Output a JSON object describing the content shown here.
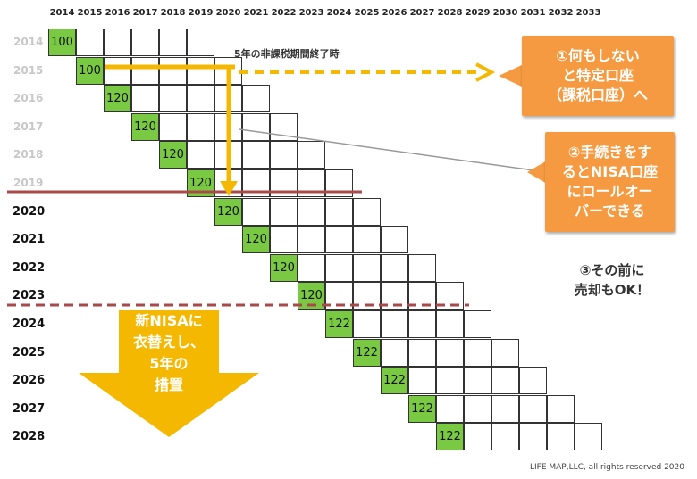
{
  "columns": [
    "2014",
    "2015",
    "2016",
    "2017",
    "2018",
    "2019",
    "2020",
    "2021",
    "2022",
    "2023",
    "2024",
    "2025",
    "2026",
    "2027",
    "2028",
    "2029",
    "2030",
    "2031",
    "2032",
    "2033"
  ],
  "rows": [
    {
      "year": "2014",
      "value": "100",
      "past": true
    },
    {
      "year": "2015",
      "value": "100",
      "past": true
    },
    {
      "year": "2016",
      "value": "120",
      "past": true
    },
    {
      "year": "2017",
      "value": "120",
      "past": true
    },
    {
      "year": "2018",
      "value": "120",
      "past": true
    },
    {
      "year": "2019",
      "value": "120",
      "past": true
    },
    {
      "year": "2020",
      "value": "120",
      "past": false
    },
    {
      "year": "2021",
      "value": "120",
      "past": false
    },
    {
      "year": "2022",
      "value": "120",
      "past": false
    },
    {
      "year": "2023",
      "value": "120",
      "past": false
    },
    {
      "year": "2024",
      "value": "122",
      "past": false
    },
    {
      "year": "2025",
      "value": "122",
      "past": false
    },
    {
      "year": "2026",
      "value": "122",
      "past": false
    },
    {
      "year": "2027",
      "value": "122",
      "past": false
    },
    {
      "year": "2028",
      "value": "122",
      "past": false
    }
  ],
  "labels": {
    "period_end": "5年の非課税期間終了時",
    "option1": [
      "①何もしない",
      "と特定口座",
      "（課税口座）へ"
    ],
    "option2": [
      "②手続きをす",
      "るとNISA口座",
      "にロールオー",
      "バーできる"
    ],
    "option3": [
      "③その前に",
      "売却もOK！"
    ],
    "new_nisa": [
      "新NISAに",
      "衣替えし、",
      "5年の",
      "措置"
    ],
    "copyright": "LIFE MAP,LLC, all rights reserved 2020"
  },
  "colors": {
    "cell_green": "#7ac943",
    "arrow_yellow": "#f5b800",
    "callout_orange": "#f59a40",
    "line_red": "#a94a4a"
  }
}
